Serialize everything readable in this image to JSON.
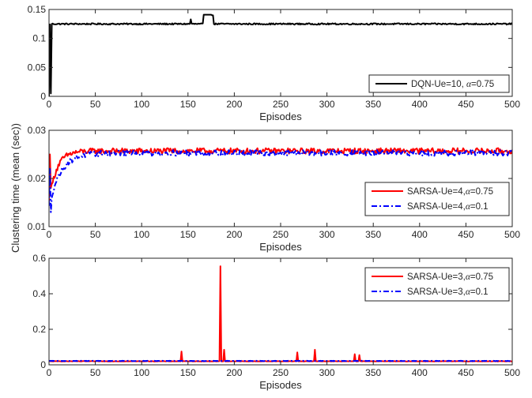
{
  "figure": {
    "shared_ylabel": "Clustering time (mean (sec))"
  },
  "chart_data": [
    {
      "type": "line",
      "xlabel": "Episodes",
      "xlim": [
        0,
        500
      ],
      "ylim": [
        0,
        0.15
      ],
      "xticks": [
        0,
        50,
        100,
        150,
        200,
        250,
        300,
        350,
        400,
        450,
        500
      ],
      "yticks": [
        0,
        0.05,
        0.1,
        0.15
      ],
      "ytick_labels": [
        "0",
        "0.05",
        "0.1",
        "0.15"
      ],
      "legend_position": "bottom-right",
      "series": [
        {
          "name": "DQN-Ue=10, α=0.75",
          "legend_label": "DQN-Ue=10, ",
          "legend_greek": "α",
          "legend_suffix": "=0.75",
          "color": "#000000",
          "style": "solid",
          "base": 0.125,
          "noise": 0.0012,
          "startup": [
            [
              0,
              0.0
            ],
            [
              2,
              0.005
            ],
            [
              3,
              0.125
            ]
          ],
          "spikes": [
            [
              153,
              0.133
            ],
            [
              167,
              0.141
            ],
            [
              168,
              0.141
            ],
            [
              169,
              0.141
            ],
            [
              170,
              0.141
            ],
            [
              171,
              0.141
            ],
            [
              172,
              0.141
            ],
            [
              173,
              0.141
            ],
            [
              174,
              0.141
            ],
            [
              175,
              0.141
            ],
            [
              176,
              0.14
            ],
            [
              177,
              0.14
            ]
          ]
        }
      ]
    },
    {
      "type": "line",
      "xlabel": "Episodes",
      "xlim": [
        0,
        500
      ],
      "ylim": [
        0.01,
        0.03
      ],
      "xticks": [
        0,
        50,
        100,
        150,
        200,
        250,
        300,
        350,
        400,
        450,
        500
      ],
      "yticks": [
        0.01,
        0.02,
        0.03
      ],
      "ytick_labels": [
        "0.01",
        "0.02",
        "0.03"
      ],
      "legend_position": "bottom-right",
      "series": [
        {
          "name": "SARSA-Ue=4, α=0.75",
          "legend_label": "SARSA-Ue=4,",
          "legend_greek": "α",
          "legend_suffix": "=0.75",
          "color": "#ff0000",
          "style": "solid",
          "base": 0.0257,
          "noise": 0.0006,
          "rise": {
            "start": 0.015,
            "tau": 8
          },
          "startup": [
            [
              1,
              0.025
            ],
            [
              2,
              0.018
            ]
          ],
          "spikes": []
        },
        {
          "name": "SARSA-Ue=4, α=0.1",
          "legend_label": "SARSA-Ue=4,",
          "legend_greek": "α",
          "legend_suffix": "=0.1",
          "color": "#0000ff",
          "style": "dashdot",
          "base": 0.0253,
          "noise": 0.0006,
          "rise": {
            "start": 0.014,
            "tau": 12
          },
          "startup": [
            [
              1,
              0.022
            ],
            [
              2,
              0.013
            ]
          ],
          "spikes": []
        }
      ]
    },
    {
      "type": "line",
      "xlabel": "Episodes",
      "xlim": [
        0,
        500
      ],
      "ylim": [
        0,
        0.6
      ],
      "xticks": [
        0,
        50,
        100,
        150,
        200,
        250,
        300,
        350,
        400,
        450,
        500
      ],
      "yticks": [
        0,
        0.2,
        0.4,
        0.6
      ],
      "ytick_labels": [
        "0",
        "0.2",
        "0.4",
        "0.6"
      ],
      "legend_position": "top-right",
      "series": [
        {
          "name": "SARSA-Ue=3, α=0.75",
          "legend_label": "SARSA-Ue=3,",
          "legend_greek": "α",
          "legend_suffix": "=0.75",
          "color": "#ff0000",
          "style": "solid",
          "base": 0.02,
          "noise": 0.001,
          "startup": [],
          "spikes": [
            [
              143,
              0.075
            ],
            [
              185,
              0.555
            ],
            [
              189,
              0.085
            ],
            [
              268,
              0.07
            ],
            [
              287,
              0.085
            ],
            [
              330,
              0.06
            ],
            [
              335,
              0.055
            ]
          ]
        },
        {
          "name": "SARSA-Ue=3, α=0.1",
          "legend_label": "SARSA-Ue=3,",
          "legend_greek": "α",
          "legend_suffix": "=0.1",
          "color": "#0000ff",
          "style": "dashdot",
          "base": 0.022,
          "noise": 0.001,
          "startup": [],
          "spikes": []
        }
      ]
    }
  ]
}
